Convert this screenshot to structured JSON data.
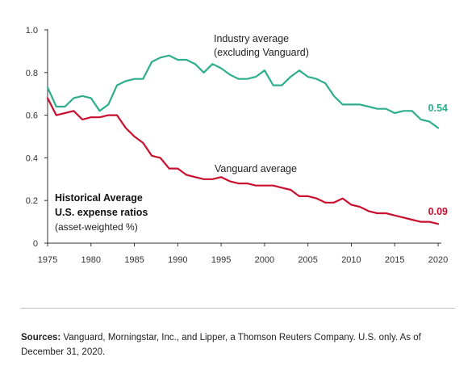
{
  "chart_data": {
    "type": "line",
    "title": "",
    "xlabel": "",
    "ylabel": "",
    "xlim": [
      1975,
      2020
    ],
    "ylim": [
      0,
      1.0
    ],
    "x_ticks": [
      "1975",
      "1980",
      "1985",
      "1990",
      "1995",
      "2000",
      "2005",
      "2010",
      "2015",
      "2020"
    ],
    "y_ticks": [
      "0",
      "0.2",
      "0.4",
      "0.6",
      "0.8",
      "1.0"
    ],
    "x": [
      1975,
      1976,
      1977,
      1978,
      1979,
      1980,
      1981,
      1982,
      1983,
      1984,
      1985,
      1986,
      1987,
      1988,
      1989,
      1990,
      1991,
      1992,
      1993,
      1994,
      1995,
      1996,
      1997,
      1998,
      1999,
      2000,
      2001,
      2002,
      2003,
      2004,
      2005,
      2006,
      2007,
      2008,
      2009,
      2010,
      2011,
      2012,
      2013,
      2014,
      2015,
      2016,
      2017,
      2018,
      2019,
      2020
    ],
    "series": [
      {
        "name": "Industry average (excluding Vanguard)",
        "label_lines": [
          "Industry average",
          "(excluding Vanguard)"
        ],
        "color": "#2eae8c",
        "end_label": "0.54",
        "values": [
          0.73,
          0.64,
          0.64,
          0.68,
          0.69,
          0.68,
          0.62,
          0.65,
          0.74,
          0.76,
          0.77,
          0.77,
          0.85,
          0.87,
          0.88,
          0.86,
          0.86,
          0.84,
          0.8,
          0.84,
          0.82,
          0.79,
          0.77,
          0.77,
          0.78,
          0.81,
          0.74,
          0.74,
          0.78,
          0.81,
          0.78,
          0.77,
          0.75,
          0.69,
          0.65,
          0.65,
          0.65,
          0.64,
          0.63,
          0.63,
          0.61,
          0.62,
          0.62,
          0.58,
          0.57,
          0.54
        ]
      },
      {
        "name": "Vanguard average",
        "label_lines": [
          "Vanguard average"
        ],
        "color": "#c8102e",
        "end_label": "0.09",
        "values": [
          0.68,
          0.6,
          0.61,
          0.62,
          0.58,
          0.59,
          0.59,
          0.6,
          0.6,
          0.54,
          0.5,
          0.47,
          0.41,
          0.4,
          0.35,
          0.35,
          0.32,
          0.31,
          0.3,
          0.3,
          0.31,
          0.29,
          0.28,
          0.28,
          0.27,
          0.27,
          0.27,
          0.26,
          0.25,
          0.22,
          0.22,
          0.21,
          0.19,
          0.19,
          0.21,
          0.18,
          0.17,
          0.15,
          0.14,
          0.14,
          0.13,
          0.12,
          0.11,
          0.1,
          0.1,
          0.09
        ]
      }
    ],
    "annotation": {
      "title_lines": [
        "Historical Average",
        "U.S. expense ratios"
      ],
      "subtitle": "(asset-weighted %)"
    },
    "grid": false,
    "legend": "inline"
  },
  "footer": {
    "sources_label": "Sources:",
    "sources_text": " Vanguard, Morningstar, Inc., and Lipper, a Thomson Reuters Company. U.S. only. As of December 31, 2020."
  }
}
